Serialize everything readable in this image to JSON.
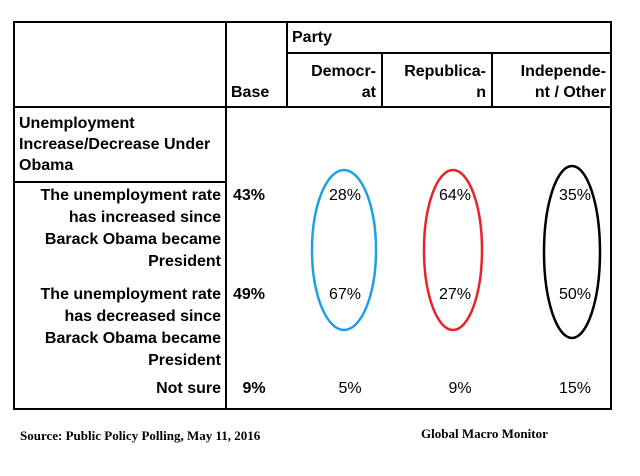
{
  "chart_data": {
    "type": "table",
    "group_header": "Party",
    "columns": [
      "Base",
      "Democr-\nat",
      "Republica-\nn",
      "Independe-\nnt / Other"
    ],
    "question": "Unemployment Increase/Decrease Under Obama",
    "rows": [
      {
        "label": "The unemployment rate has increased since Barack Obama became President",
        "values": [
          "43%",
          "28%",
          "64%",
          "35%"
        ]
      },
      {
        "label": "The unemployment rate has decreased since Barack Obama became President",
        "values": [
          "49%",
          "67%",
          "27%",
          "50%"
        ]
      },
      {
        "label": "Not sure",
        "values": [
          "9%",
          "5%",
          "9%",
          "15%"
        ]
      }
    ],
    "highlight_ellipses": [
      {
        "column": "Democrat",
        "color": "#1ea0e6"
      },
      {
        "column": "Republican",
        "color": "#e8232d"
      },
      {
        "column": "Independent / Other",
        "color": "#000000"
      }
    ]
  },
  "footer": {
    "source": "Source: Public Policy Polling, May 11, 2016",
    "brand": "Global Macro Monitor"
  }
}
